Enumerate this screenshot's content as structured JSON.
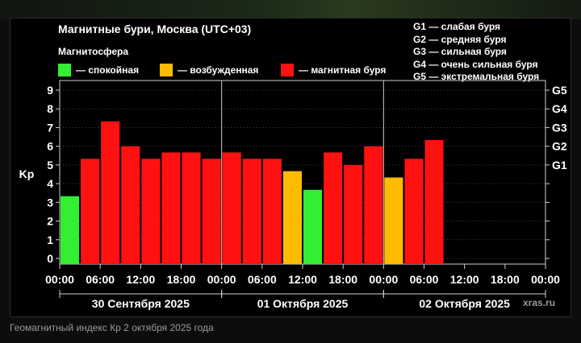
{
  "title": "Магнитные бури, Москва (UTC+03)",
  "magnetosphere_title": "Магнитосфера",
  "legend": [
    {
      "label": "— спокойная",
      "color": "#33ee33"
    },
    {
      "label": "— возбужденная",
      "color": "#ffbb00"
    },
    {
      "label": "— магнитная буря",
      "color": "#ff1111"
    }
  ],
  "storm_levels": [
    "G1 — слабая буря",
    "G2 — средняя буря",
    "G3 — сильная буря",
    "G4 — очень сильная буря",
    "G5 — экстремальная буря"
  ],
  "caption": "Геомагнитный индекс Кр 2 октября 2025 года",
  "watermark": "xras.ru",
  "chart_data": {
    "type": "bar",
    "ylabel": "Kp",
    "ylim": [
      0,
      9
    ],
    "y_ticks": [
      0,
      1,
      2,
      3,
      4,
      5,
      6,
      7,
      8,
      9
    ],
    "right_axis_ticks": [
      {
        "value": 5,
        "label": "G1"
      },
      {
        "value": 6,
        "label": "G2"
      },
      {
        "value": 7,
        "label": "G3"
      },
      {
        "value": 8,
        "label": "G4"
      },
      {
        "value": 9,
        "label": "G5"
      }
    ],
    "x_tick_labels": [
      "00:00",
      "06:00",
      "12:00",
      "18:00",
      "00:00",
      "06:00",
      "12:00",
      "18:00",
      "00:00",
      "06:00",
      "12:00",
      "18:00",
      "00:00"
    ],
    "days": [
      "30 Сентября 2025",
      "01 Октября 2025",
      "02 Октября 2025"
    ],
    "interval_hours": 3,
    "total_slots": 24,
    "bars": [
      {
        "value": 3.33,
        "status": "quiet"
      },
      {
        "value": 5.33,
        "status": "storm"
      },
      {
        "value": 7.33,
        "status": "storm"
      },
      {
        "value": 6.0,
        "status": "storm"
      },
      {
        "value": 5.33,
        "status": "storm"
      },
      {
        "value": 5.67,
        "status": "storm"
      },
      {
        "value": 5.67,
        "status": "storm"
      },
      {
        "value": 5.33,
        "status": "storm"
      },
      {
        "value": 5.67,
        "status": "storm"
      },
      {
        "value": 5.33,
        "status": "storm"
      },
      {
        "value": 5.33,
        "status": "storm"
      },
      {
        "value": 4.67,
        "status": "active"
      },
      {
        "value": 3.67,
        "status": "quiet"
      },
      {
        "value": 5.67,
        "status": "storm"
      },
      {
        "value": 5.0,
        "status": "storm"
      },
      {
        "value": 6.0,
        "status": "storm"
      },
      {
        "value": 4.33,
        "status": "active"
      },
      {
        "value": 5.33,
        "status": "storm"
      },
      {
        "value": 6.33,
        "status": "storm"
      }
    ],
    "status_colors": {
      "quiet": "#33ee33",
      "active": "#ffbb00",
      "storm": "#ff1111"
    },
    "grid": "horizontal dotted",
    "legend_placement": "top"
  }
}
